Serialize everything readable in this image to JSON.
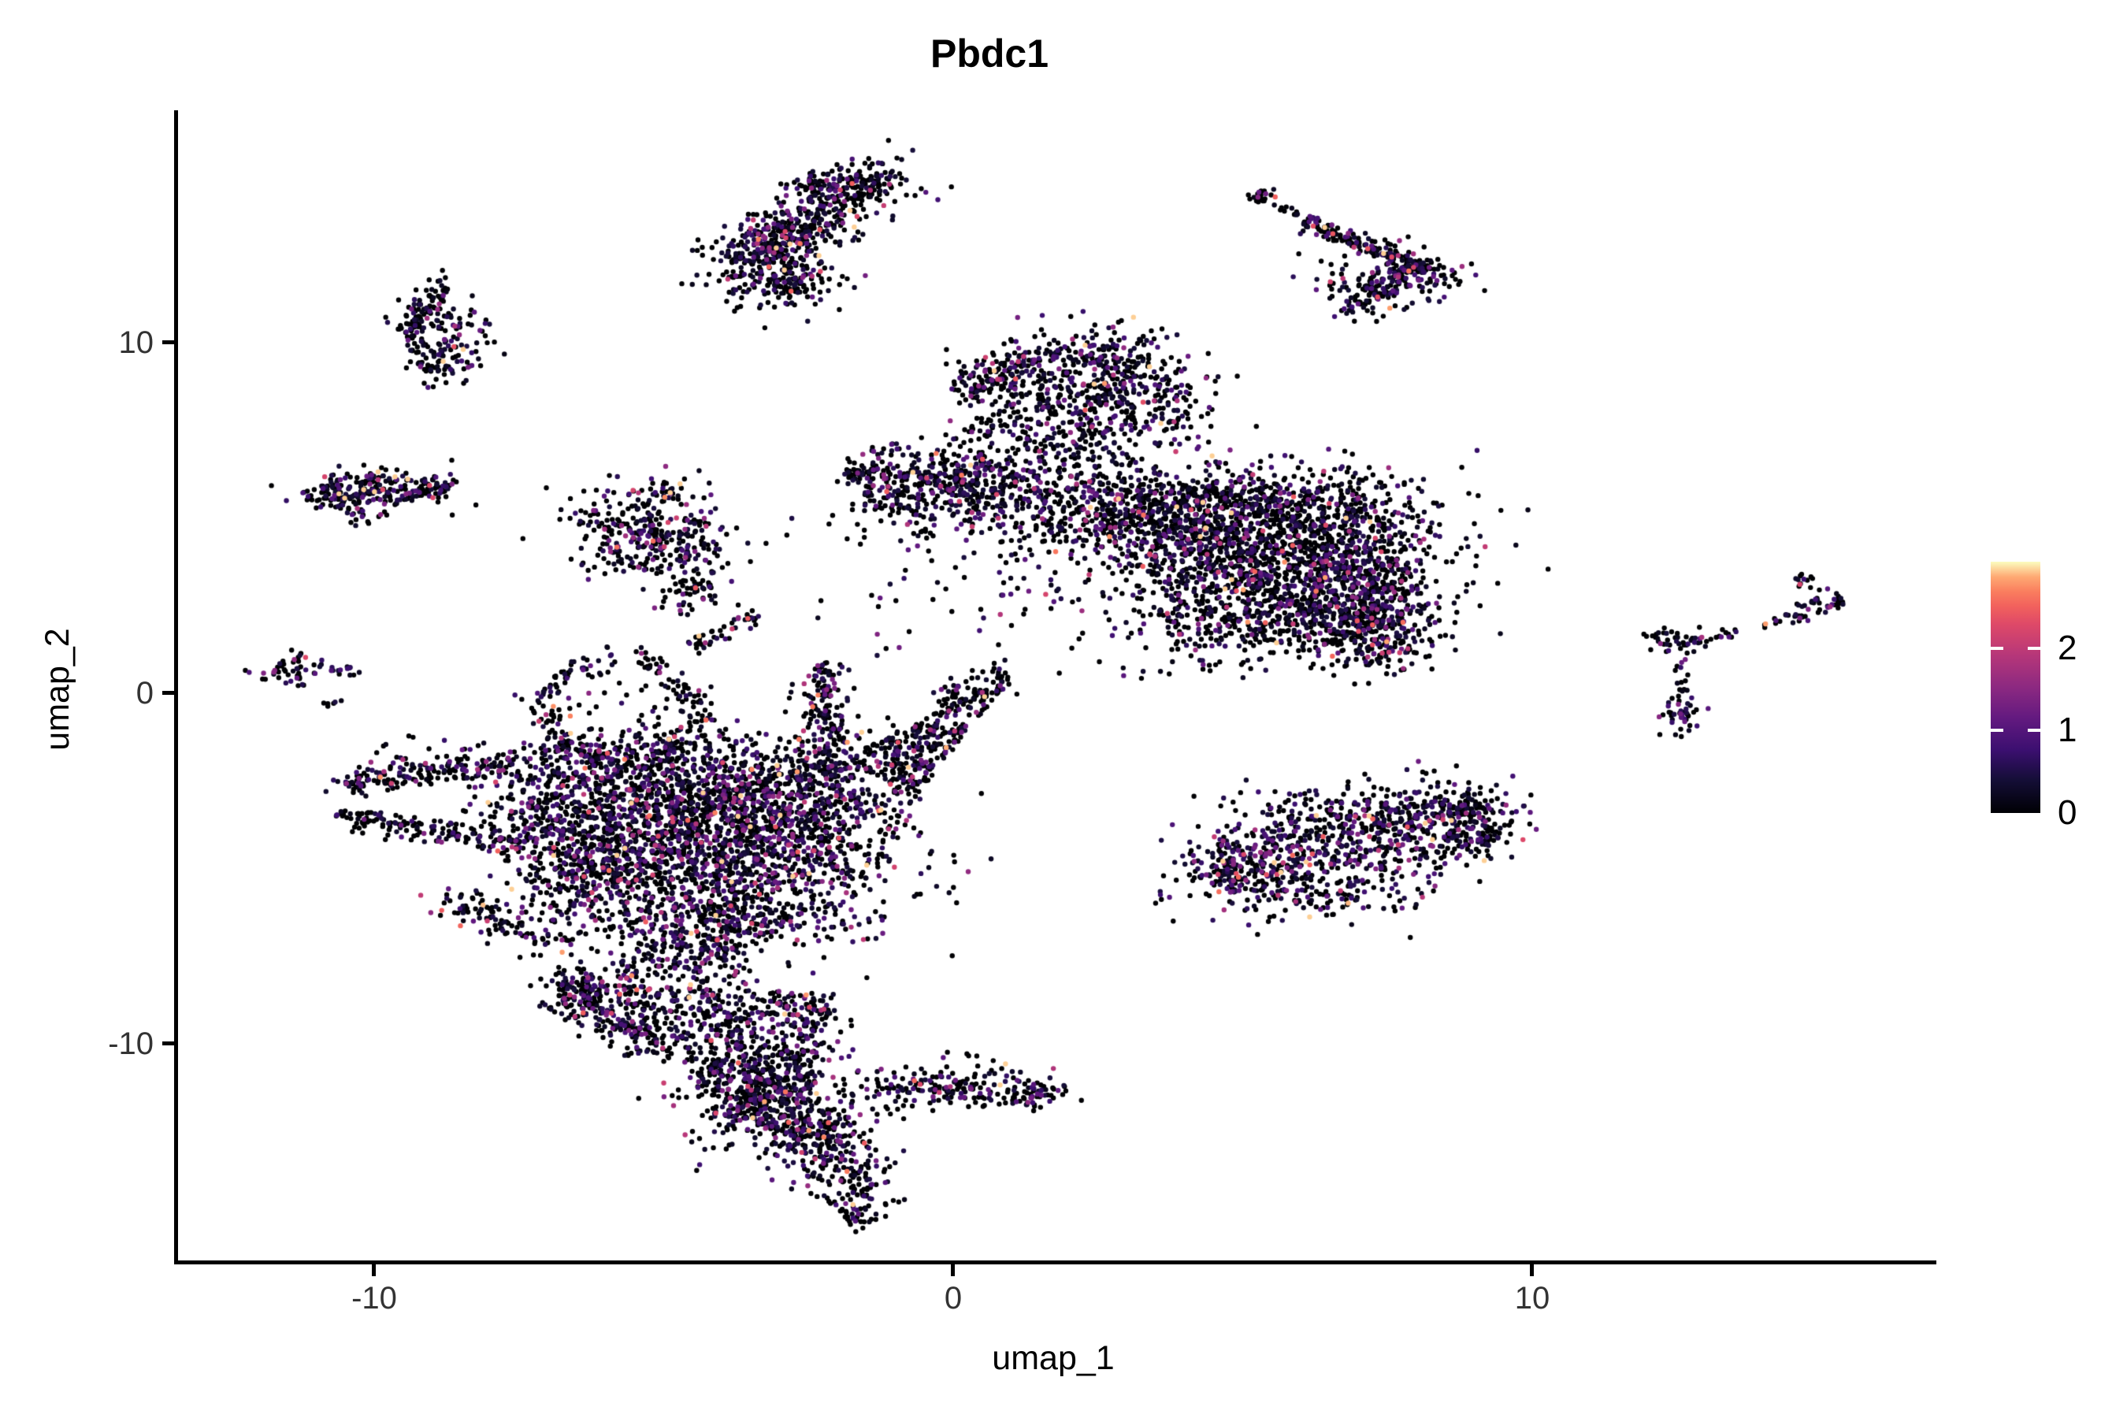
{
  "title": "Pbdc1",
  "axes": {
    "x": {
      "label": "umap_1",
      "tick_labels": [
        "-10",
        "0",
        "10"
      ]
    },
    "y": {
      "label": "umap_2",
      "tick_labels": [
        "10",
        "0",
        "-10"
      ]
    }
  },
  "legend": {
    "tick_labels": [
      "0",
      "1",
      "2"
    ],
    "domain": [
      0,
      3.05
    ],
    "colormap": "magma",
    "stops": [
      [
        0,
        "#000004"
      ],
      [
        0.13,
        "#140e36"
      ],
      [
        0.25,
        "#3b0f70"
      ],
      [
        0.38,
        "#641a80"
      ],
      [
        0.5,
        "#8c2981"
      ],
      [
        0.63,
        "#b73779"
      ],
      [
        0.75,
        "#de4968"
      ],
      [
        0.82,
        "#f1605d"
      ],
      [
        0.88,
        "#fa7d5e"
      ],
      [
        0.94,
        "#fea973"
      ],
      [
        1,
        "#fcfdbf"
      ]
    ]
  },
  "chart_data": {
    "type": "scatter",
    "title": "Pbdc1",
    "xlabel": "umap_1",
    "ylabel": "umap_2",
    "x_ticks": [
      -10,
      0,
      10
    ],
    "y_ticks": [
      -10,
      0,
      10
    ],
    "xlim": [
      -13.4,
      16.9
    ],
    "ylim": [
      -16.3,
      16.7
    ],
    "grid": false,
    "legend_position": "right",
    "color_scale": {
      "name": "magma",
      "domain": [
        0,
        3.05
      ],
      "legend_ticks": [
        0,
        1,
        2
      ]
    },
    "point_radius_px": 3.2,
    "seed": 42,
    "value_model": {
      "zero_prob_default": 0.57,
      "exp_mean": 0.62,
      "v_min": 0.12,
      "v_max": 2.95
    },
    "clusters": [
      {
        "id": "topcenter-main",
        "type": "gauss",
        "cx": -2.6,
        "cy": 13.4,
        "sx": 1.0,
        "sy": 0.42,
        "rot": 44,
        "n": 430
      },
      {
        "id": "topcenter-lower",
        "type": "gauss",
        "cx": -3.2,
        "cy": 12.2,
        "sx": 0.55,
        "sy": 0.55,
        "n": 170
      },
      {
        "id": "topcenter-topedge",
        "type": "gauss",
        "cx": -1.95,
        "cy": 14.55,
        "sx": 0.5,
        "sy": 0.3,
        "rot": 10,
        "n": 110
      },
      {
        "id": "topcenter-tail",
        "type": "gauss",
        "cx": -2.7,
        "cy": 11.7,
        "sx": 0.45,
        "sy": 0.35,
        "n": 60
      },
      {
        "id": "topright-dot",
        "type": "gauss",
        "cx": 5.35,
        "cy": 14.3,
        "sx": 0.12,
        "sy": 0.12,
        "n": 20
      },
      {
        "id": "topright-chain",
        "type": "strip",
        "x1": 5.55,
        "y1": 14.05,
        "x2": 6.0,
        "y2": 13.6,
        "w": 0.07,
        "n": 10
      },
      {
        "id": "topright-line",
        "type": "strip",
        "x1": 6.05,
        "y1": 13.5,
        "x2": 8.2,
        "y2": 12.1,
        "w": 0.13,
        "n": 170
      },
      {
        "id": "topright-endblob",
        "type": "gauss",
        "cx": 8.0,
        "cy": 11.95,
        "sx": 0.4,
        "sy": 0.28,
        "n": 90
      },
      {
        "id": "topright-scatter",
        "type": "gauss",
        "cx": 7.3,
        "cy": 11.7,
        "sx": 0.6,
        "sy": 0.5,
        "n": 80,
        "pb": 0.45
      },
      {
        "id": "topright-clump",
        "type": "gauss",
        "cx": 7.35,
        "cy": 11.45,
        "sx": 0.2,
        "sy": 0.2,
        "n": 45
      },
      {
        "id": "topright-below",
        "type": "strip",
        "x1": 6.55,
        "y1": 11.15,
        "x2": 7.1,
        "y2": 11.0,
        "w": 0.1,
        "n": 8
      },
      {
        "id": "crescent-arc",
        "type": "arc",
        "cx": -8.8,
        "cy": 10.4,
        "rx": 0.55,
        "ry": 1.05,
        "a1": 80,
        "a2": 285,
        "w": 0.3,
        "n": 130,
        "pb": 0.62
      },
      {
        "id": "crescent-inner",
        "type": "gauss",
        "cx": -8.55,
        "cy": 9.95,
        "sx": 0.32,
        "sy": 0.5,
        "n": 70,
        "pb": 0.4
      },
      {
        "id": "crescent-top",
        "type": "gauss",
        "cx": -9.0,
        "cy": 10.95,
        "sx": 0.3,
        "sy": 0.3,
        "n": 40
      },
      {
        "id": "leftblob-main",
        "type": "gauss",
        "cx": -9.95,
        "cy": 5.8,
        "sx": 0.6,
        "sy": 0.3,
        "n": 180,
        "pb": 0.5,
        "hot": 1.15
      },
      {
        "id": "leftblob-west",
        "type": "gauss",
        "cx": -10.55,
        "cy": 5.55,
        "sx": 0.28,
        "sy": 0.28,
        "n": 50
      },
      {
        "id": "leftblob-east",
        "type": "strip",
        "x1": -9.1,
        "y1": 5.95,
        "x2": -8.75,
        "y2": 5.75,
        "w": 0.25,
        "n": 35
      },
      {
        "id": "leftblob-south",
        "type": "gauss",
        "cx": -10.2,
        "cy": 5.05,
        "sx": 0.15,
        "sy": 0.15,
        "n": 10
      },
      {
        "id": "midleft-core",
        "type": "gauss",
        "cx": -5.55,
        "cy": 4.7,
        "sx": 0.6,
        "sy": 0.65,
        "n": 210,
        "pb": 0.62
      },
      {
        "id": "midleft-low",
        "type": "gauss",
        "cx": -4.85,
        "cy": 3.9,
        "sx": 0.5,
        "sy": 0.5,
        "n": 90
      },
      {
        "id": "midleft-right",
        "type": "gauss",
        "cx": -4.35,
        "cy": 4.7,
        "sx": 0.3,
        "sy": 0.7,
        "n": 45,
        "pb": 0.4
      },
      {
        "id": "midleft-tail",
        "type": "strip",
        "x1": -4.9,
        "y1": 3.1,
        "x2": -4.25,
        "y2": 2.55,
        "w": 0.3,
        "n": 45
      },
      {
        "id": "midleft-top",
        "type": "strip",
        "x1": -5.4,
        "y1": 5.9,
        "x2": -4.7,
        "y2": 5.7,
        "w": 0.15,
        "n": 22
      },
      {
        "id": "farleft-blob",
        "type": "gauss",
        "cx": -11.45,
        "cy": 0.65,
        "sx": 0.3,
        "sy": 0.22,
        "n": 48
      },
      {
        "id": "farleft-chain",
        "type": "strip",
        "x1": -10.95,
        "y1": 0.7,
        "x2": -10.2,
        "y2": 0.6,
        "w": 0.08,
        "n": 13,
        "pb": 0.35
      },
      {
        "id": "farleft-dot",
        "type": "gauss",
        "cx": -10.75,
        "cy": -0.3,
        "sx": 0.09,
        "sy": 0.09,
        "n": 6
      },
      {
        "id": "upperblob-core",
        "type": "gauss",
        "cx": 2.5,
        "cy": 8.6,
        "sx": 1.0,
        "sy": 0.8,
        "n": 500,
        "pb": 0.6
      },
      {
        "id": "upperblob-arm",
        "type": "strip",
        "x1": 0.05,
        "y1": 8.75,
        "x2": 1.45,
        "y2": 9.4,
        "w": 0.4,
        "n": 140
      },
      {
        "id": "upperblob-top",
        "type": "gauss",
        "cx": 2.3,
        "cy": 9.7,
        "sx": 0.65,
        "sy": 0.3,
        "n": 90
      },
      {
        "id": "upperblob-below",
        "type": "gauss",
        "cx": 1.9,
        "cy": 7.3,
        "sx": 0.8,
        "sy": 0.5,
        "n": 90
      },
      {
        "id": "upperblob-stray",
        "type": "gauss",
        "cx": 0.95,
        "cy": 7.6,
        "sx": 0.45,
        "sy": 0.45,
        "n": 35
      },
      {
        "id": "upperblob-chain",
        "type": "strip",
        "x1": 3.7,
        "y1": 8.9,
        "x2": 3.95,
        "y2": 7.75,
        "w": 0.1,
        "n": 10,
        "pb": 0.3
      },
      {
        "id": "band-left",
        "type": "strip",
        "x1": -1.5,
        "y1": 6.2,
        "x2": 1.2,
        "y2": 5.95,
        "w": 0.5,
        "n": 420,
        "pb": 0.52
      },
      {
        "id": "band-right",
        "type": "strip",
        "x1": 1.2,
        "y1": 5.95,
        "x2": 3.6,
        "y2": 5.5,
        "w": 0.55,
        "n": 300
      },
      {
        "id": "band-under",
        "type": "gauss",
        "cx": 0.1,
        "cy": 5.0,
        "sx": 1.1,
        "sy": 0.45,
        "n": 100
      },
      {
        "id": "band-tip",
        "type": "gauss",
        "cx": -1.65,
        "cy": 6.3,
        "sx": 0.22,
        "sy": 0.22,
        "n": 40
      },
      {
        "id": "band-bridge",
        "type": "gauss",
        "cx": 2.6,
        "cy": 4.7,
        "sx": 0.85,
        "sy": 0.5,
        "n": 90,
        "pb": 0.6
      },
      {
        "id": "mid-sparse-a",
        "type": "gauss",
        "cx": -0.2,
        "cy": 2.4,
        "sx": 0.9,
        "sy": 0.8,
        "n": 30,
        "pb": 0.6
      },
      {
        "id": "mid-sparse-b",
        "type": "gauss",
        "cx": 1.6,
        "cy": 3.5,
        "sx": 0.8,
        "sy": 0.7,
        "n": 40,
        "pb": 0.6
      },
      {
        "id": "bigmass-core",
        "type": "gauss",
        "cx": 5.6,
        "cy": 3.7,
        "sx": 1.4,
        "sy": 1.2,
        "n": 1450,
        "pb": 0.63
      },
      {
        "id": "bigmass-dome",
        "type": "gauss",
        "cx": 5.3,
        "cy": 5.5,
        "sx": 1.25,
        "sy": 0.5,
        "n": 330,
        "pb": 0.6
      },
      {
        "id": "bigmass-right",
        "type": "gauss",
        "cx": 7.15,
        "cy": 3.4,
        "sx": 0.5,
        "sy": 0.95,
        "n": 240,
        "pb": 0.6
      },
      {
        "id": "bigmass-lobe",
        "type": "gauss",
        "cx": 7.3,
        "cy": 1.75,
        "sx": 0.45,
        "sy": 0.5,
        "n": 230,
        "pb": 0.6
      },
      {
        "id": "bigmass-left",
        "type": "gauss",
        "cx": 4.3,
        "cy": 4.7,
        "sx": 0.55,
        "sy": 0.8,
        "n": 200,
        "pb": 0.6
      },
      {
        "id": "bigmass-bottom",
        "type": "gauss",
        "cx": 5.5,
        "cy": 2.2,
        "sx": 1.15,
        "sy": 0.5,
        "n": 260,
        "pb": 0.6
      },
      {
        "id": "bigmass-west",
        "type": "gauss",
        "cx": 3.6,
        "cy": 4.9,
        "sx": 0.5,
        "sy": 0.6,
        "n": 70,
        "pb": 0.6
      },
      {
        "id": "ycluster-left",
        "type": "gauss",
        "cx": 12.35,
        "cy": 1.6,
        "sx": 0.24,
        "sy": 0.2,
        "n": 32,
        "pb": 0.5
      },
      {
        "id": "ycluster-chain1",
        "type": "strip",
        "x1": 12.6,
        "y1": 1.42,
        "x2": 13.1,
        "y2": 1.5,
        "w": 0.08,
        "n": 12
      },
      {
        "id": "ycluster-chain2",
        "type": "strip",
        "x1": 13.12,
        "y1": 1.55,
        "x2": 13.55,
        "y2": 1.78,
        "w": 0.07,
        "n": 10
      },
      {
        "id": "ycluster-stem",
        "type": "strip",
        "x1": 12.68,
        "y1": 1.25,
        "x2": 12.6,
        "y2": 0.0,
        "w": 0.07,
        "n": 15
      },
      {
        "id": "ycluster-bottom",
        "type": "gauss",
        "cx": 12.55,
        "cy": -0.6,
        "sx": 0.17,
        "sy": 0.32,
        "n": 42,
        "hot": 1.2
      },
      {
        "id": "arrow-top",
        "type": "gauss",
        "cx": 14.75,
        "cy": 3.15,
        "sx": 0.13,
        "sy": 0.13,
        "n": 13
      },
      {
        "id": "arrow-arm",
        "type": "strip",
        "x1": 14.35,
        "y1": 2.1,
        "x2": 15.35,
        "y2": 2.7,
        "w": 0.13,
        "n": 48,
        "pb": 0.5
      },
      {
        "id": "arrow-lead",
        "type": "strip",
        "x1": 13.95,
        "y1": 1.95,
        "x2": 14.28,
        "y2": 2.06,
        "w": 0.06,
        "n": 7,
        "pb": 0.45
      },
      {
        "id": "ellipse-main",
        "type": "strip",
        "x1": 4.55,
        "y1": -5.1,
        "x2": 9.25,
        "y2": -3.45,
        "w": 0.6,
        "n": 680,
        "pb": 0.5,
        "hot": 1.1
      },
      {
        "id": "ellipse-top",
        "type": "gauss",
        "cx": 6.7,
        "cy": -3.3,
        "sx": 1.2,
        "sy": 0.45,
        "n": 130,
        "pb": 0.6
      },
      {
        "id": "ellipse-bottom",
        "type": "gauss",
        "cx": 6.1,
        "cy": -5.7,
        "sx": 1.2,
        "sy": 0.4,
        "n": 160,
        "pb": 0.55
      },
      {
        "id": "ellipse-ltip",
        "type": "gauss",
        "cx": 4.55,
        "cy": -4.8,
        "sx": 0.35,
        "sy": 0.35,
        "n": 60,
        "pb": 0.5
      },
      {
        "id": "ellipse-rend",
        "type": "gauss",
        "cx": 9.0,
        "cy": -3.7,
        "sx": 0.45,
        "sy": 0.55,
        "n": 130,
        "pb": 0.55
      },
      {
        "id": "ring-leftarc",
        "type": "arc",
        "cx": -5.75,
        "cy": -0.45,
        "rx": 1.3,
        "ry": 1.45,
        "a1": 95,
        "a2": 255,
        "w": 0.16,
        "n": 115,
        "pb": 0.6
      },
      {
        "id": "ring-rightarc",
        "type": "arc",
        "cx": -5.75,
        "cy": -0.45,
        "rx": 1.25,
        "ry": 1.4,
        "a1": -65,
        "a2": 75,
        "w": 0.16,
        "n": 95,
        "pb": 0.6
      },
      {
        "id": "ring-strand",
        "type": "strip",
        "x1": -4.55,
        "y1": 1.15,
        "x2": -3.35,
        "y2": 2.3,
        "w": 0.14,
        "n": 45
      },
      {
        "id": "ring-inner",
        "type": "gauss",
        "cx": -5.7,
        "cy": -0.3,
        "sx": 0.45,
        "sy": 0.5,
        "n": 12
      },
      {
        "id": "arm-upper",
        "type": "strip",
        "x1": -10.3,
        "y1": -2.55,
        "x2": -7.55,
        "y2": -2.05,
        "w": 0.18,
        "n": 130,
        "pb": 0.6
      },
      {
        "id": "arm-upper-tip",
        "type": "gauss",
        "cx": -10.4,
        "cy": -2.6,
        "sx": 0.16,
        "sy": 0.16,
        "n": 25
      },
      {
        "id": "arm-lower",
        "type": "strip",
        "x1": -10.3,
        "y1": -3.6,
        "x2": -7.35,
        "y2": -4.35,
        "w": 0.2,
        "n": 140,
        "pb": 0.6
      },
      {
        "id": "arm-lower-tip",
        "type": "gauss",
        "cx": -10.4,
        "cy": -3.55,
        "sx": 0.16,
        "sy": 0.16,
        "n": 22
      },
      {
        "id": "arm-junction",
        "type": "gauss",
        "cx": -7.2,
        "cy": -3.4,
        "sx": 0.45,
        "sy": 0.85,
        "n": 90
      },
      {
        "id": "arm-above",
        "type": "gauss",
        "cx": -8.8,
        "cy": -1.85,
        "sx": 0.75,
        "sy": 0.3,
        "n": 40
      },
      {
        "id": "mass-core",
        "type": "gauss",
        "cx": -4.3,
        "cy": -4.3,
        "sx": 1.55,
        "sy": 1.25,
        "n": 1450,
        "pb": 0.5,
        "hot": 1.05
      },
      {
        "id": "mass-upper",
        "type": "gauss",
        "cx": -4.9,
        "cy": -2.5,
        "sx": 1.35,
        "sy": 0.8,
        "n": 600,
        "pb": 0.55
      },
      {
        "id": "mass-rbulge",
        "type": "gauss",
        "cx": -2.4,
        "cy": -3.2,
        "sx": 0.85,
        "sy": 1.05,
        "n": 500,
        "pb": 0.5
      },
      {
        "id": "mass-lwedge",
        "type": "gauss",
        "cx": -6.3,
        "cy": -4.7,
        "sx": 0.7,
        "sy": 0.85,
        "n": 300,
        "pb": 0.55
      },
      {
        "id": "mass-bottom",
        "type": "gauss",
        "cx": -3.9,
        "cy": -6.3,
        "sx": 1.25,
        "sy": 0.5,
        "n": 320,
        "pb": 0.5
      },
      {
        "id": "mass-spine",
        "type": "strip",
        "x1": -2.25,
        "y1": 0.9,
        "x2": -2.1,
        "y2": -2.4,
        "w": 0.18,
        "n": 160,
        "pb": 0.6
      },
      {
        "id": "mass-wing",
        "type": "tri",
        "p": [
          [
            -1.85,
            -1.85
          ],
          [
            1.05,
            0.6
          ],
          [
            -0.75,
            -3.2
          ]
        ],
        "n": 280,
        "pb": 0.6
      },
      {
        "id": "mass-wingtip",
        "type": "strip",
        "x1": -0.3,
        "y1": -0.3,
        "x2": 1.0,
        "y2": 0.5,
        "w": 0.25,
        "n": 60,
        "pb": 0.6
      },
      {
        "id": "mass-ringgap",
        "type": "gauss",
        "cx": -6.25,
        "cy": -2.0,
        "sx": 0.8,
        "sy": 0.5,
        "n": 120
      },
      {
        "id": "mass-dstrand",
        "type": "strip",
        "x1": -8.3,
        "y1": -6.15,
        "x2": -6.6,
        "y2": -7.3,
        "w": 0.28,
        "n": 80
      },
      {
        "id": "mass-dblob",
        "type": "gauss",
        "cx": -8.5,
        "cy": -6.0,
        "sx": 0.25,
        "sy": 0.25,
        "n": 30
      },
      {
        "id": "mass-neck",
        "type": "gauss",
        "cx": -4.6,
        "cy": -7.3,
        "sx": 0.75,
        "sy": 0.5,
        "n": 150,
        "pb": 0.5
      },
      {
        "id": "tri-lobe",
        "type": "tri",
        "p": [
          [
            -6.9,
            -8.3
          ],
          [
            -2.05,
            -8.6
          ],
          [
            -2.7,
            -13.2
          ]
        ],
        "n": 720,
        "pb": 0.55
      },
      {
        "id": "tri-dense",
        "type": "gauss",
        "cx": -3.1,
        "cy": -11.4,
        "sx": 0.95,
        "sy": 0.85,
        "n": 430,
        "pb": 0.55
      },
      {
        "id": "tri-apex",
        "type": "gauss",
        "cx": -6.5,
        "cy": -8.6,
        "sx": 0.3,
        "sy": 0.3,
        "n": 55
      },
      {
        "id": "tri-topedge",
        "type": "strip",
        "x1": -6.85,
        "y1": -8.3,
        "x2": -3.5,
        "y2": -8.0,
        "w": 0.3,
        "n": 120
      },
      {
        "id": "tri-leftedge",
        "type": "strip",
        "x1": -6.6,
        "y1": -8.6,
        "x2": -5.2,
        "y2": -10.2,
        "w": 0.3,
        "n": 110
      },
      {
        "id": "rarm-line",
        "type": "strip",
        "x1": -1.35,
        "y1": -11.35,
        "x2": 1.3,
        "y2": -11.55,
        "w": 0.2,
        "n": 130,
        "pb": 0.6
      },
      {
        "id": "rarm-end",
        "type": "gauss",
        "cx": 1.45,
        "cy": -11.5,
        "sx": 0.2,
        "sy": 0.2,
        "n": 40
      },
      {
        "id": "rarm-dots",
        "type": "strip",
        "x1": 1.6,
        "y1": -11.45,
        "x2": 1.95,
        "y2": -11.4,
        "w": 0.08,
        "n": 6
      },
      {
        "id": "rarm-above",
        "type": "gauss",
        "cx": 0.2,
        "cy": -10.85,
        "sx": 0.65,
        "sy": 0.3,
        "n": 45
      },
      {
        "id": "tail-strip",
        "type": "strip",
        "x1": -2.35,
        "y1": -12.3,
        "x2": -1.6,
        "y2": -14.8,
        "w": 0.4,
        "n": 170,
        "pb": 0.55
      },
      {
        "id": "tail-tip",
        "type": "gauss",
        "cx": -1.65,
        "cy": -15.05,
        "sx": 0.18,
        "sy": 0.18,
        "n": 28
      },
      {
        "id": "tail-upper",
        "type": "gauss",
        "cx": -2.3,
        "cy": -12.9,
        "sx": 0.45,
        "sy": 0.45,
        "n": 80,
        "pb": 0.55
      }
    ]
  }
}
